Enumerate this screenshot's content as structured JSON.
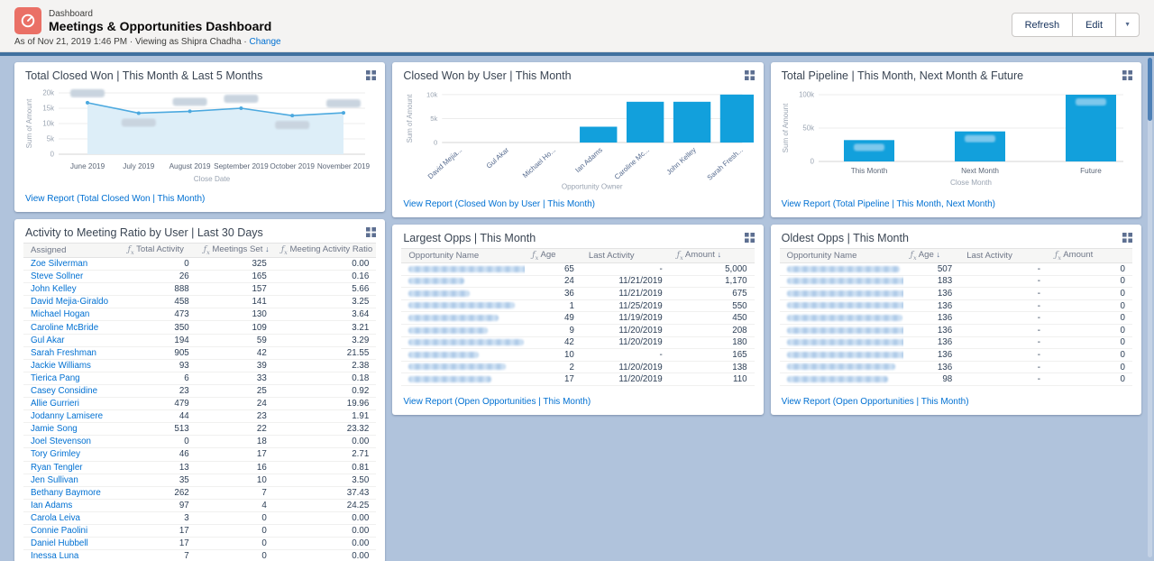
{
  "colors": {
    "accent": "#0070d2",
    "bar": "#12a0dc",
    "line": "#4ca9df",
    "line_fill": "#ddeef8",
    "icon_bg": "#ea7066",
    "dash_bg": "#b0c3dc",
    "band": "#41719f"
  },
  "header": {
    "app_label": "Dashboard",
    "title": "Meetings & Opportunities Dashboard",
    "as_of": "As of Nov 21, 2019 1:46 PM · Viewing as Shipra Chadha · ",
    "change_link": "Change",
    "refresh_label": "Refresh",
    "edit_label": "Edit"
  },
  "panels": {
    "total_closed_won": {
      "title": "Total Closed Won | This Month & Last 5 Months",
      "footer_link": "View Report (Total Closed Won | This Month)"
    },
    "closed_won_by_user": {
      "title": "Closed Won by User | This Month",
      "footer_link": "View Report (Closed Won by User | This Month)"
    },
    "total_pipeline": {
      "title": "Total Pipeline | This Month, Next Month & Future",
      "footer_link": "View Report (Total Pipeline | This Month, Next Month)"
    },
    "activity_ratio": {
      "title": "Activity to Meeting Ratio by User | Last 30 Days",
      "columns": [
        {
          "label": "Assigned",
          "fx": false,
          "sort": ""
        },
        {
          "label": "Total Activity",
          "fx": true,
          "sort": ""
        },
        {
          "label": "Meetings Set",
          "fx": true,
          "sort": "↓"
        },
        {
          "label": "Meeting Activity Ratio",
          "fx": true,
          "sort": ""
        }
      ],
      "rows": [
        [
          "Zoe Silverman",
          "0",
          "325",
          "0.00"
        ],
        [
          "Steve Sollner",
          "26",
          "165",
          "0.16"
        ],
        [
          "John Kelley",
          "888",
          "157",
          "5.66"
        ],
        [
          "David Mejia-Giraldo",
          "458",
          "141",
          "3.25"
        ],
        [
          "Michael Hogan",
          "473",
          "130",
          "3.64"
        ],
        [
          "Caroline McBride",
          "350",
          "109",
          "3.21"
        ],
        [
          "Gul Akar",
          "194",
          "59",
          "3.29"
        ],
        [
          "Sarah Freshman",
          "905",
          "42",
          "21.55"
        ],
        [
          "Jackie Williams",
          "93",
          "39",
          "2.38"
        ],
        [
          "Tierica Pang",
          "6",
          "33",
          "0.18"
        ],
        [
          "Casey Considine",
          "23",
          "25",
          "0.92"
        ],
        [
          "Allie Gurrieri",
          "479",
          "24",
          "19.96"
        ],
        [
          "Jodanny Lamisere",
          "44",
          "23",
          "1.91"
        ],
        [
          "Jamie Song",
          "513",
          "22",
          "23.32"
        ],
        [
          "Joel Stevenson",
          "0",
          "18",
          "0.00"
        ],
        [
          "Tory Grimley",
          "46",
          "17",
          "2.71"
        ],
        [
          "Ryan Tengler",
          "13",
          "16",
          "0.81"
        ],
        [
          "Jen Sullivan",
          "35",
          "10",
          "3.50"
        ],
        [
          "Bethany Baymore",
          "262",
          "7",
          "37.43"
        ],
        [
          "Ian Adams",
          "97",
          "4",
          "24.25"
        ],
        [
          "Carola Leiva",
          "3",
          "0",
          "0.00"
        ],
        [
          "Connie Paolini",
          "17",
          "0",
          "0.00"
        ],
        [
          "Daniel Hubbell",
          "17",
          "0",
          "0.00"
        ],
        [
          "Inessa Luna",
          "7",
          "0",
          "0.00"
        ]
      ]
    },
    "largest_opps": {
      "title": "Largest Opps | This Month",
      "footer_link": "View Report (Open Opportunities | This Month)",
      "columns": [
        {
          "label": "Opportunity Name",
          "fx": false,
          "sort": ""
        },
        {
          "label": "Age",
          "fx": true,
          "sort": ""
        },
        {
          "label": "Last Activity",
          "fx": false,
          "sort": ""
        },
        {
          "label": "Amount",
          "fx": true,
          "sort": "↓"
        }
      ],
      "rows": [
        {
          "name_redacted": true,
          "name_w": 150,
          "age": "65",
          "last": "-",
          "amount": "5,000"
        },
        {
          "name_redacted": true,
          "name_w": 62,
          "age": "24",
          "last": "11/21/2019",
          "amount": "1,170"
        },
        {
          "name_redacted": true,
          "name_w": 68,
          "age": "36",
          "last": "11/21/2019",
          "amount": "675"
        },
        {
          "name_redacted": true,
          "name_w": 118,
          "age": "1",
          "last": "11/25/2019",
          "amount": "550"
        },
        {
          "name_redacted": true,
          "name_w": 100,
          "age": "49",
          "last": "11/19/2019",
          "amount": "450"
        },
        {
          "name_redacted": true,
          "name_w": 88,
          "age": "9",
          "last": "11/20/2019",
          "amount": "208"
        },
        {
          "name_redacted": true,
          "name_w": 128,
          "age": "42",
          "last": "11/20/2019",
          "amount": "180"
        },
        {
          "name_redacted": true,
          "name_w": 78,
          "age": "10",
          "last": "-",
          "amount": "165"
        },
        {
          "name_redacted": true,
          "name_w": 108,
          "age": "2",
          "last": "11/20/2019",
          "amount": "138"
        },
        {
          "name_redacted": true,
          "name_w": 92,
          "age": "17",
          "last": "11/20/2019",
          "amount": "110"
        }
      ]
    },
    "oldest_opps": {
      "title": "Oldest Opps | This Month",
      "footer_link": "View Report (Open Opportunities | This Month)",
      "columns": [
        {
          "label": "Opportunity Name",
          "fx": false,
          "sort": ""
        },
        {
          "label": "Age",
          "fx": true,
          "sort": "↓"
        },
        {
          "label": "Last Activity",
          "fx": false,
          "sort": ""
        },
        {
          "label": "Amount",
          "fx": true,
          "sort": ""
        }
      ],
      "rows": [
        {
          "name_redacted": true,
          "name_w": 125,
          "age": "507",
          "last": "-",
          "amount": "0"
        },
        {
          "name_redacted": true,
          "name_w": 140,
          "age": "183",
          "last": "-",
          "amount": "0"
        },
        {
          "name_redacted": true,
          "name_w": 168,
          "age": "136",
          "last": "-",
          "amount": "0"
        },
        {
          "name_redacted": true,
          "name_w": 192,
          "age": "136",
          "last": "-",
          "amount": "0"
        },
        {
          "name_redacted": true,
          "name_w": 128,
          "age": "136",
          "last": "-",
          "amount": "0"
        },
        {
          "name_redacted": true,
          "name_w": 148,
          "age": "136",
          "last": "-",
          "amount": "0"
        },
        {
          "name_redacted": true,
          "name_w": 142,
          "age": "136",
          "last": "-",
          "amount": "0"
        },
        {
          "name_redacted": true,
          "name_w": 178,
          "age": "136",
          "last": "-",
          "amount": "0"
        },
        {
          "name_redacted": true,
          "name_w": 120,
          "age": "136",
          "last": "-",
          "amount": "0"
        },
        {
          "name_redacted": true,
          "name_w": 112,
          "age": "98",
          "last": "-",
          "amount": "0"
        }
      ]
    }
  },
  "chart_data": [
    {
      "id": "total_closed_won",
      "type": "line",
      "title": "Total Closed Won | This Month & Last 5 Months",
      "x": [
        "June 2019",
        "July 2019",
        "August 2019",
        "September 2019",
        "October 2019",
        "November 2019"
      ],
      "values": [
        16800,
        13400,
        14000,
        15000,
        12600,
        13500
      ],
      "point_labels_redacted": true,
      "label_side": [
        "above",
        "below",
        "above",
        "above",
        "below",
        "above"
      ],
      "xlabel": "Close Date",
      "ylabel": "Sum of Amount",
      "ylim": [
        0,
        20000
      ],
      "yticks": [
        0,
        5000,
        10000,
        15000,
        20000
      ],
      "ytick_labels": [
        "0",
        "5k",
        "10k",
        "15k",
        "20k"
      ],
      "grid": true,
      "area_fill": true,
      "legend": "none"
    },
    {
      "id": "closed_won_by_user",
      "type": "bar",
      "title": "Closed Won by User | This Month",
      "categories": [
        "David Mejia...",
        "Gul Akar",
        "Michael Ho...",
        "Ian Adams",
        "Caroline Mc...",
        "John Kelley",
        "Sarah Fresh..."
      ],
      "values": [
        0,
        0,
        0,
        3300,
        8500,
        8500,
        10000
      ],
      "xlabel": "Opportunity Owner",
      "ylabel": "Sum of Amount",
      "ylim": [
        0,
        10000
      ],
      "yticks": [
        0,
        5000,
        10000
      ],
      "ytick_labels": [
        "0",
        "5k",
        "10k"
      ],
      "grid": true,
      "legend": "none"
    },
    {
      "id": "total_pipeline",
      "type": "bar",
      "title": "Total Pipeline | This Month, Next Month & Future",
      "categories": [
        "This Month",
        "Next Month",
        "Future"
      ],
      "values": [
        32000,
        45000,
        100000
      ],
      "bar_labels_redacted": true,
      "xlabel": "Close Month",
      "ylabel": "Sum of Amount",
      "ylim": [
        0,
        100000
      ],
      "yticks": [
        0,
        50000,
        100000
      ],
      "ytick_labels": [
        "0",
        "50k",
        "100k"
      ],
      "grid": true,
      "legend": "none"
    }
  ]
}
